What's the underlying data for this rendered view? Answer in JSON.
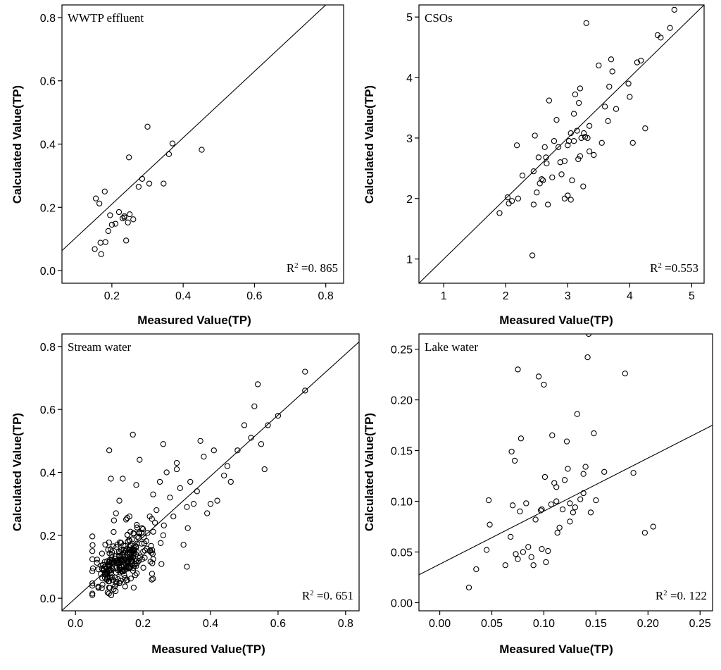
{
  "chart_data": [
    {
      "type": "scatter",
      "title": "WWTP effluent",
      "xlabel": "Measured Value(TP)",
      "ylabel": "Calculated Value(TP)",
      "xlim": [
        0.06,
        0.85
      ],
      "ylim": [
        -0.04,
        0.84
      ],
      "xticks": [
        0.2,
        0.4,
        0.6,
        0.8
      ],
      "xtick_labels": [
        "0.2",
        "0.4",
        "0.6",
        "0.8"
      ],
      "yticks": [
        0.0,
        0.2,
        0.4,
        0.6,
        0.8
      ],
      "ytick_labels": [
        "0.0",
        "0.2",
        "0.4",
        "0.6",
        "0.8"
      ],
      "r2_label": "R",
      "r2_sup": "2",
      "r2_value": " =0. 865",
      "fit_line": {
        "slope": 1.05,
        "intercept": -0.0,
        "x_range": [
          0.06,
          0.85
        ]
      },
      "x": [
        0.152,
        0.155,
        0.165,
        0.168,
        0.17,
        0.18,
        0.182,
        0.19,
        0.195,
        0.2,
        0.21,
        0.22,
        0.23,
        0.235,
        0.24,
        0.245,
        0.248,
        0.25,
        0.26,
        0.275,
        0.285,
        0.3,
        0.305,
        0.345,
        0.36,
        0.37,
        0.452,
        0.235
      ],
      "y": [
        0.068,
        0.228,
        0.212,
        0.088,
        0.052,
        0.25,
        0.09,
        0.125,
        0.175,
        0.145,
        0.148,
        0.185,
        0.165,
        0.172,
        0.095,
        0.152,
        0.358,
        0.178,
        0.162,
        0.265,
        0.29,
        0.455,
        0.275,
        0.275,
        0.368,
        0.402,
        0.382,
        0.168
      ]
    },
    {
      "type": "scatter",
      "title": "CSOs",
      "xlabel": "Measured Value(TP)",
      "ylabel": "Calculated Value(TP)",
      "xlim": [
        0.6,
        5.2
      ],
      "ylim": [
        0.6,
        5.2
      ],
      "xticks": [
        1,
        2,
        3,
        4,
        5
      ],
      "xtick_labels": [
        "1",
        "2",
        "3",
        "4",
        "5"
      ],
      "yticks": [
        1,
        2,
        3,
        4,
        5
      ],
      "ytick_labels": [
        "1",
        "2",
        "3",
        "4",
        "5"
      ],
      "r2_label": "R",
      "r2_sup": "2",
      "r2_value": " =0.553",
      "fit_line": {
        "slope": 1.0,
        "intercept": 0.0,
        "x_range": [
          0.6,
          5.2
        ]
      },
      "x": [
        1.9,
        2.03,
        2.05,
        2.1,
        2.18,
        2.2,
        2.27,
        2.43,
        2.45,
        2.47,
        2.5,
        2.53,
        2.55,
        2.6,
        2.63,
        2.66,
        2.68,
        2.7,
        2.75,
        2.78,
        2.82,
        2.85,
        2.88,
        2.9,
        2.95,
        3.0,
        3.02,
        3.05,
        3.07,
        3.1,
        3.12,
        3.15,
        3.17,
        3.18,
        3.2,
        3.22,
        3.25,
        3.26,
        3.28,
        3.3,
        3.32,
        3.35,
        3.42,
        3.5,
        3.55,
        3.6,
        3.65,
        3.67,
        3.7,
        3.72,
        3.78,
        3.98,
        4.0,
        4.05,
        4.12,
        4.18,
        4.25,
        4.45,
        4.5,
        4.65,
        4.72,
        2.45,
        2.65,
        3.05,
        3.2,
        3.0,
        2.58,
        3.1,
        3.35,
        2.95
      ],
      "y": [
        1.76,
        2.02,
        1.92,
        1.96,
        2.88,
        2.0,
        2.38,
        1.06,
        2.45,
        3.04,
        2.1,
        2.68,
        2.25,
        2.3,
        2.85,
        2.58,
        1.9,
        3.62,
        2.35,
        2.95,
        3.3,
        2.85,
        2.6,
        2.4,
        2.0,
        2.05,
        2.95,
        3.08,
        2.3,
        3.4,
        3.72,
        3.12,
        2.65,
        3.58,
        3.82,
        3.0,
        2.2,
        3.08,
        3.02,
        4.9,
        3.0,
        2.78,
        2.72,
        4.2,
        2.92,
        3.52,
        3.28,
        3.85,
        4.3,
        4.1,
        3.48,
        3.9,
        3.68,
        2.92,
        4.25,
        4.28,
        3.16,
        4.7,
        4.66,
        4.82,
        5.12,
        1.9,
        2.68,
        1.98,
        2.7,
        2.88,
        2.32,
        2.95,
        3.2,
        2.62
      ]
    },
    {
      "type": "scatter",
      "title": "Stream water",
      "xlabel": "Measured Value(TP)",
      "ylabel": "Calculated Value(TP)",
      "xlim": [
        -0.04,
        0.84
      ],
      "ylim": [
        -0.04,
        0.84
      ],
      "xticks": [
        0.0,
        0.2,
        0.4,
        0.6,
        0.8
      ],
      "xtick_labels": [
        "0.0",
        "0.2",
        "0.4",
        "0.6",
        "0.8"
      ],
      "yticks": [
        0.0,
        0.2,
        0.4,
        0.6,
        0.8
      ],
      "ytick_labels": [
        "0.0",
        "0.2",
        "0.4",
        "0.6",
        "0.8"
      ],
      "r2_label": "R",
      "r2_sup": "2",
      "r2_value": " =0. 651",
      "fit_line": {
        "slope": 0.97,
        "intercept": 0.0,
        "x_range": [
          -0.04,
          0.84
        ]
      },
      "x": [
        0.1,
        0.105,
        0.13,
        0.14,
        0.17,
        0.19,
        0.26,
        0.3,
        0.33,
        0.37,
        0.38,
        0.4,
        0.41,
        0.45,
        0.5,
        0.52,
        0.53,
        0.54,
        0.55,
        0.56,
        0.57,
        0.6,
        0.68,
        0.68,
        0.32,
        0.34,
        0.36,
        0.42,
        0.46,
        0.48,
        0.25,
        0.24,
        0.27,
        0.22,
        0.3,
        0.35,
        0.28,
        0.26,
        0.2,
        0.23,
        0.12,
        0.15,
        0.18,
        0.16,
        0.22,
        0.29,
        0.33,
        0.39,
        0.44,
        0.31
      ],
      "y": [
        0.47,
        0.38,
        0.31,
        0.38,
        0.52,
        0.44,
        0.49,
        0.41,
        0.1,
        0.5,
        0.45,
        0.3,
        0.47,
        0.42,
        0.55,
        0.51,
        0.61,
        0.68,
        0.49,
        0.41,
        0.55,
        0.58,
        0.72,
        0.66,
        0.17,
        0.37,
        0.34,
        0.31,
        0.37,
        0.47,
        0.37,
        0.28,
        0.4,
        0.26,
        0.43,
        0.3,
        0.32,
        0.2,
        0.22,
        0.33,
        0.27,
        0.25,
        0.36,
        0.26,
        0.15,
        0.26,
        0.29,
        0.27,
        0.39,
        0.35
      ],
      "cluster": {
        "x_center": 0.14,
        "y_center": 0.12,
        "x_spread": 0.09,
        "y_spread": 0.07,
        "count": 260
      }
    },
    {
      "type": "scatter",
      "title": "Lake water",
      "xlabel": "Measured Value(TP)",
      "ylabel": "Calculated Value(TP)",
      "xlim": [
        -0.02,
        0.262
      ],
      "ylim": [
        -0.008,
        0.265
      ],
      "xticks": [
        0.0,
        0.05,
        0.1,
        0.15,
        0.2,
        0.25
      ],
      "xtick_labels": [
        "0.00",
        "0.05",
        "0.10",
        "0.15",
        "0.20",
        "0.25"
      ],
      "yticks": [
        0.0,
        0.05,
        0.1,
        0.15,
        0.2,
        0.25
      ],
      "ytick_labels": [
        "0.00",
        "0.05",
        "0.10",
        "0.15",
        "0.20",
        "0.25"
      ],
      "r2_label": "R",
      "r2_sup": "2",
      "r2_value": " =0. 122",
      "fit_line": {
        "slope": 0.523,
        "intercept": 0.038,
        "x_range": [
          -0.02,
          0.262
        ]
      },
      "x": [
        0.028,
        0.035,
        0.045,
        0.047,
        0.048,
        0.063,
        0.068,
        0.069,
        0.07,
        0.072,
        0.073,
        0.075,
        0.077,
        0.078,
        0.08,
        0.083,
        0.085,
        0.088,
        0.09,
        0.092,
        0.095,
        0.097,
        0.098,
        0.1,
        0.101,
        0.102,
        0.104,
        0.107,
        0.108,
        0.11,
        0.112,
        0.113,
        0.115,
        0.118,
        0.12,
        0.122,
        0.123,
        0.125,
        0.128,
        0.13,
        0.132,
        0.135,
        0.138,
        0.14,
        0.142,
        0.145,
        0.148,
        0.15,
        0.158,
        0.178,
        0.186,
        0.197,
        0.205,
        0.075,
        0.098,
        0.112,
        0.125,
        0.138,
        0.143
      ],
      "y": [
        0.015,
        0.033,
        0.052,
        0.101,
        0.077,
        0.037,
        0.065,
        0.149,
        0.096,
        0.14,
        0.048,
        0.23,
        0.09,
        0.162,
        0.05,
        0.098,
        0.055,
        0.045,
        0.037,
        0.082,
        0.223,
        0.091,
        0.053,
        0.215,
        0.124,
        0.04,
        0.051,
        0.097,
        0.165,
        0.118,
        0.114,
        0.069,
        0.074,
        0.092,
        0.121,
        0.159,
        0.132,
        0.098,
        0.089,
        0.094,
        0.186,
        0.102,
        0.127,
        0.134,
        0.242,
        0.089,
        0.167,
        0.101,
        0.129,
        0.226,
        0.128,
        0.069,
        0.075,
        0.043,
        0.092,
        0.1,
        0.08,
        0.108,
        0.265
      ]
    }
  ]
}
